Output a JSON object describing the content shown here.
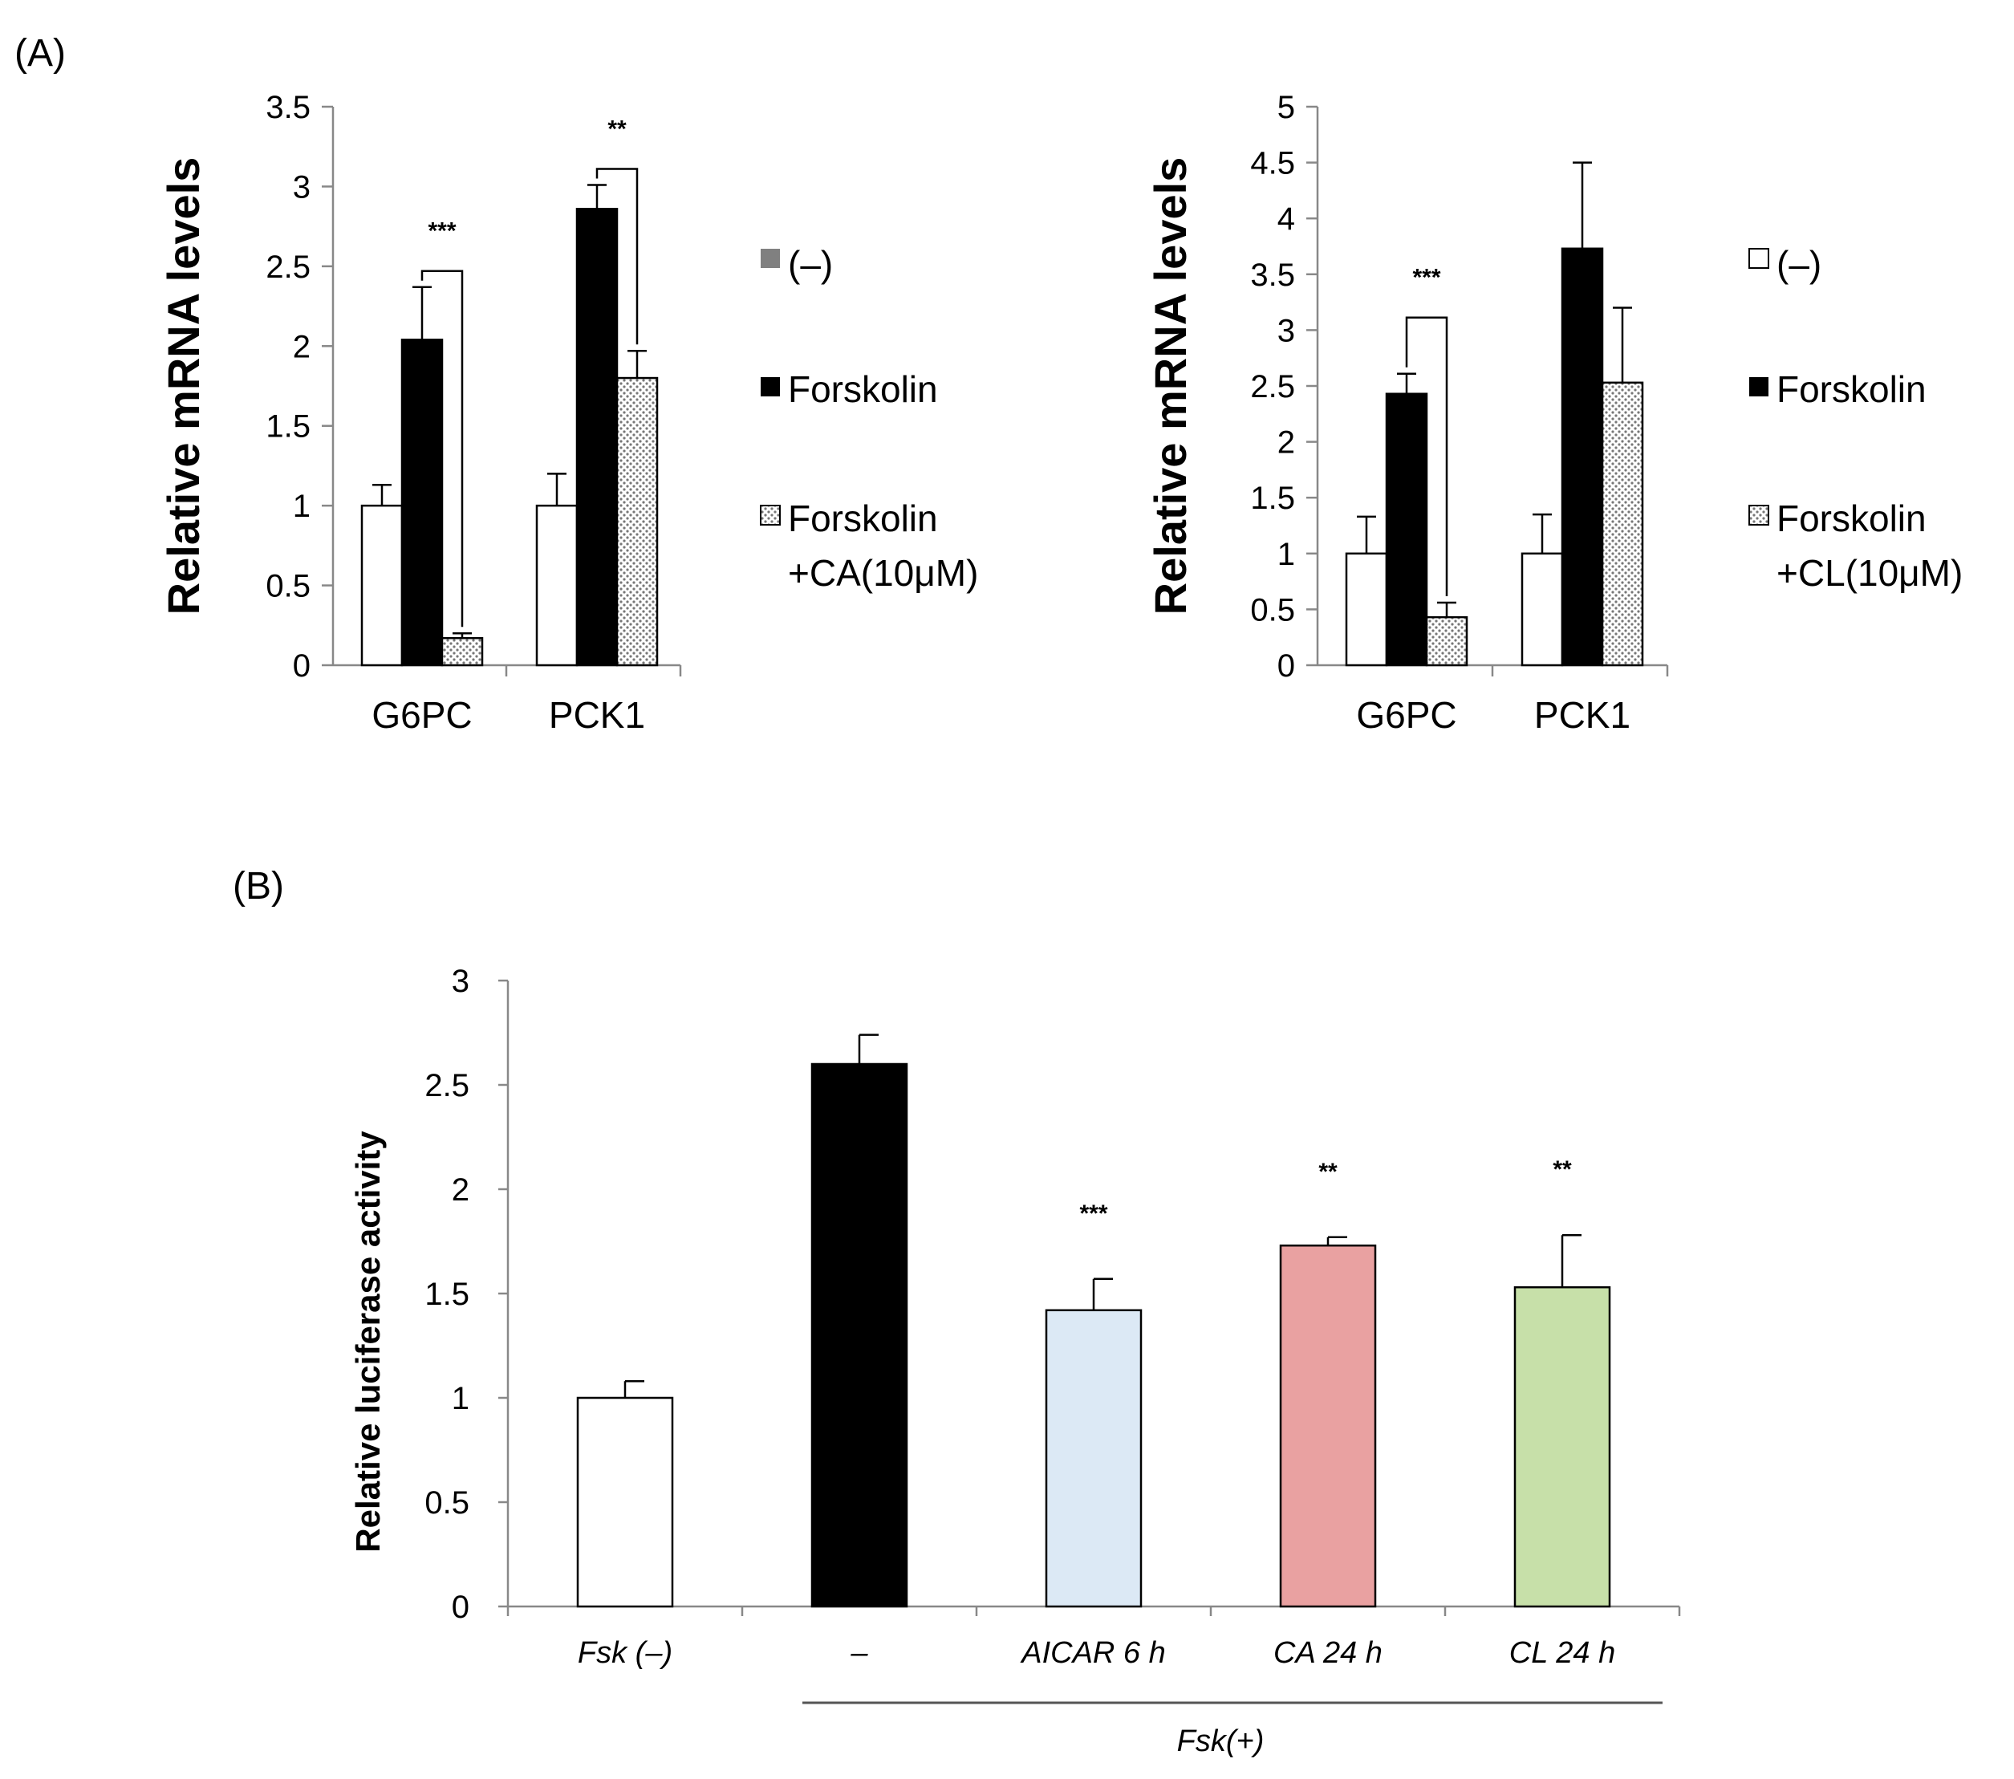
{
  "colors": {
    "axis": "#888888",
    "bar_control": "#ffffff",
    "bar_forskolin": "#000000",
    "legend_control_A1": "#808080",
    "dotted_fill": "#dedede",
    "aicar": "#dce9f5",
    "ca": "#e9a1a1",
    "cl": "#c7e0a9"
  },
  "chart_data": [
    {
      "id": "A-left",
      "panel_label": "(A)",
      "type": "bar",
      "ylabel": "Relative mRNA levels",
      "ylim": [
        0,
        3.5
      ],
      "yticks": [
        "0",
        "0.5",
        "1",
        "1.5",
        "2",
        "2.5",
        "3",
        "3.5"
      ],
      "categories": [
        "G6PC",
        "PCK1"
      ],
      "series": [
        {
          "name": "(–)",
          "style": "white",
          "values": [
            1.0,
            1.0
          ],
          "errors": [
            0.13,
            0.2
          ]
        },
        {
          "name": "Forskolin",
          "style": "black",
          "values": [
            2.04,
            2.86
          ],
          "errors": [
            0.33,
            0.15
          ]
        },
        {
          "name": "Forskolin",
          "name2": "+CA(10μM)",
          "style": "dotted",
          "values": [
            0.17,
            1.8
          ],
          "errors": [
            0.03,
            0.17
          ]
        }
      ],
      "significance": [
        {
          "category": "G6PC",
          "label": "***"
        },
        {
          "category": "PCK1",
          "label": "**"
        }
      ]
    },
    {
      "id": "A-right",
      "type": "bar",
      "ylabel": "Relative mRNA levels",
      "ylim": [
        0,
        5
      ],
      "yticks": [
        "0",
        "0.5",
        "1",
        "1.5",
        "2",
        "2.5",
        "3",
        "3.5",
        "4",
        "4.5",
        "5"
      ],
      "categories": [
        "G6PC",
        "PCK1"
      ],
      "series": [
        {
          "name": "(–)",
          "style": "white",
          "values": [
            1.0,
            1.0
          ],
          "errors": [
            0.33,
            0.35
          ]
        },
        {
          "name": "Forskolin",
          "style": "black",
          "values": [
            2.43,
            3.73
          ],
          "errors": [
            0.18,
            0.77
          ]
        },
        {
          "name": "Forskolin",
          "name2": "+CL(10μM)",
          "style": "dotted",
          "values": [
            0.43,
            2.53
          ],
          "errors": [
            0.13,
            0.67
          ]
        }
      ],
      "significance": [
        {
          "category": "G6PC",
          "label": "***"
        }
      ]
    },
    {
      "id": "B",
      "panel_label": "(B)",
      "type": "bar",
      "ylabel": "Relative luciferase activity",
      "ylim": [
        0,
        3
      ],
      "yticks": [
        "0",
        "0.5",
        "1",
        "1.5",
        "2",
        "2.5",
        "3"
      ],
      "categories": [
        "Fsk (–)",
        "–",
        "AICAR 6 h",
        "CA 24 h",
        "CL 24 h"
      ],
      "values": [
        1.0,
        2.6,
        1.42,
        1.73,
        1.53
      ],
      "errors": [
        0.08,
        0.14,
        0.15,
        0.04,
        0.25
      ],
      "bar_colors": [
        "#ffffff",
        "#000000",
        "#dce9f5",
        "#e9a1a1",
        "#c7e0a9"
      ],
      "significance": [
        "",
        "",
        "***",
        "**",
        "**"
      ],
      "group_label": "Fsk(+)"
    }
  ]
}
